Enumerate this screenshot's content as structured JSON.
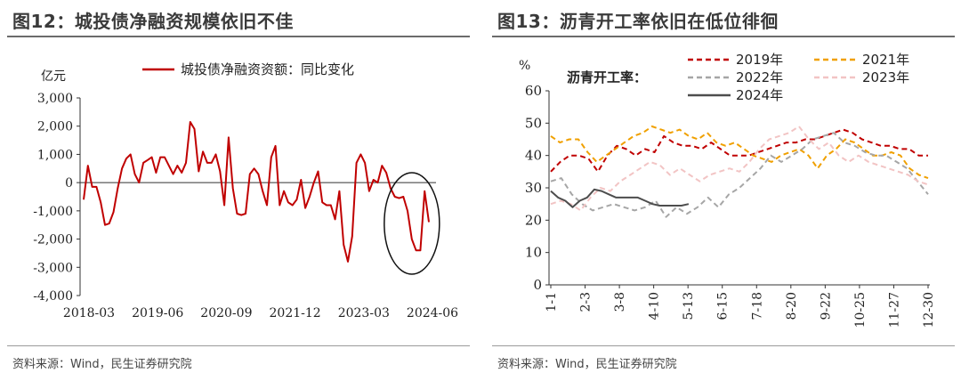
{
  "left": {
    "title": "图12：城投债净融资规模依旧不佳",
    "source": "资料来源：Wind，民生证券研究院",
    "chart_data": {
      "type": "line",
      "yunit": "亿元",
      "ylim": [
        -4000,
        3000
      ],
      "yticks": [
        "3,000",
        "2,000",
        "1,000",
        "0",
        "-1,000",
        "-2,000",
        "-3,000",
        "-4,000"
      ],
      "ytick_values": [
        3000,
        2000,
        1000,
        0,
        -1000,
        -2000,
        -3000,
        -4000
      ],
      "xticks": [
        "2018-03",
        "2019-06",
        "2020-09",
        "2021-12",
        "2023-03",
        "2024-06"
      ],
      "grid": false,
      "legend_position": "top-center",
      "annotation": "ellipse highlighting 2024 values",
      "series": [
        {
          "name": "城投债净融资资额：同比变化",
          "color": "#c00000",
          "values": [
            -600,
            600,
            -150,
            -150,
            -700,
            -1500,
            -1450,
            -1050,
            -200,
            500,
            850,
            1000,
            300,
            0,
            700,
            800,
            900,
            350,
            900,
            900,
            600,
            300,
            600,
            350,
            700,
            2150,
            1900,
            400,
            1100,
            700,
            700,
            1000,
            400,
            -800,
            1600,
            -200,
            -1100,
            -1150,
            -1100,
            300,
            500,
            300,
            -300,
            -800,
            900,
            1300,
            -800,
            -300,
            -700,
            -800,
            -600,
            100,
            -900,
            -500,
            0,
            400,
            -700,
            -800,
            -800,
            -1300,
            -300,
            -2200,
            -2800,
            -1900,
            700,
            1000,
            700,
            -300,
            100,
            0,
            600,
            350,
            -200,
            -500,
            -550,
            -500,
            -1000,
            -2000,
            -2400,
            -2400,
            -300,
            -1400
          ]
        }
      ]
    }
  },
  "right": {
    "title": "图13：沥青开工率依旧在低位徘徊",
    "source": "资料来源：Wind，民生证券研究院",
    "chart_data": {
      "type": "line",
      "yunit": "%",
      "ylim": [
        0,
        60
      ],
      "yticks": [
        "60",
        "50",
        "40",
        "30",
        "20",
        "10",
        "0"
      ],
      "ytick_values": [
        60,
        50,
        40,
        30,
        20,
        10,
        0
      ],
      "xticks": [
        "1-1",
        "2-3",
        "3-8",
        "4-10",
        "5-13",
        "6-15",
        "7-18",
        "8-20",
        "9-22",
        "10-25",
        "11-27",
        "12-30"
      ],
      "grid": false,
      "legend_title": "沥青开工率：",
      "legend_position": "top",
      "series": [
        {
          "name": "2019年",
          "color": "#c00000",
          "dash": "dash",
          "values": [
            35,
            38,
            40,
            40,
            39,
            35,
            40,
            43,
            42,
            40,
            42,
            41,
            46,
            44,
            43,
            43,
            42,
            44,
            42,
            40,
            40,
            40,
            41,
            42,
            43,
            44,
            44,
            45,
            45,
            46,
            47,
            48,
            47,
            45,
            44,
            43,
            43,
            42,
            42,
            40,
            40
          ]
        },
        {
          "name": "2021年",
          "color": "#f0a000",
          "dash": "dash",
          "values": [
            46,
            44,
            45,
            45,
            41,
            38,
            40,
            42,
            44,
            46,
            47,
            49,
            48,
            47,
            48,
            46,
            45,
            47,
            44,
            43,
            44,
            42,
            40,
            39,
            38,
            40,
            41,
            42,
            40,
            36,
            40,
            42,
            45,
            44,
            42,
            40,
            40,
            41,
            40,
            36,
            34,
            33
          ]
        },
        {
          "name": "2022年",
          "color": "#a6a6a6",
          "dash": "dash",
          "values": [
            32,
            33,
            28,
            25,
            23,
            24,
            25,
            24,
            23,
            24,
            26,
            21,
            24,
            22,
            24,
            27,
            24,
            28,
            30,
            33,
            36,
            40,
            38,
            40,
            42,
            45,
            46,
            47,
            44,
            43,
            41,
            40,
            40,
            38,
            36,
            32,
            28
          ]
        },
        {
          "name": "2023年",
          "color": "#f2c4c4",
          "dash": "dash",
          "values": [
            25,
            26,
            25,
            23,
            27,
            30,
            29,
            32,
            34,
            36,
            38,
            37,
            34,
            36,
            34,
            32,
            34,
            35,
            36,
            35,
            38,
            42,
            45,
            46,
            47,
            49,
            45,
            42,
            44,
            40,
            38,
            40,
            38,
            37,
            36,
            35,
            34,
            32,
            31
          ]
        },
        {
          "name": "2024年",
          "color": "#4d4d4d",
          "dash": "solid",
          "values": [
            29,
            27,
            26,
            24,
            26,
            27,
            29.5,
            29,
            28,
            27,
            27,
            27,
            27,
            26,
            25,
            24.5,
            24.5,
            24.5,
            24.5,
            25
          ]
        }
      ]
    }
  }
}
